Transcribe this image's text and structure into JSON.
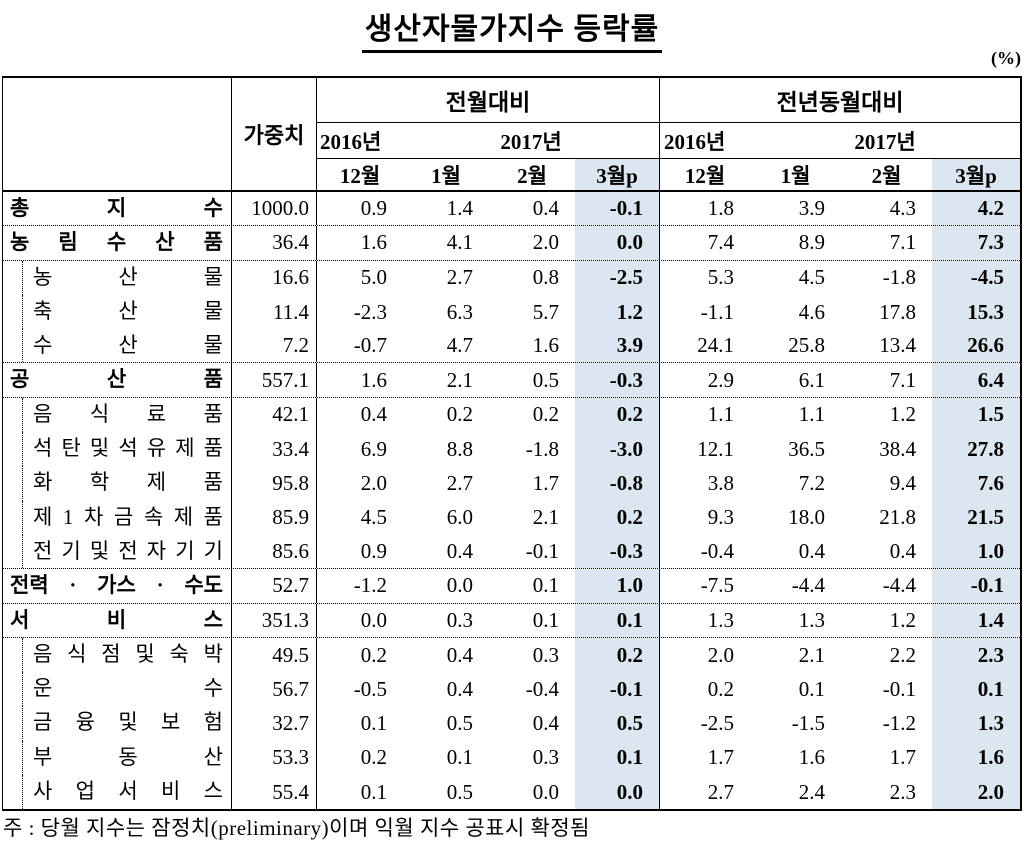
{
  "title": "생산자물가지수 등락률",
  "unit_label": "(%)",
  "colors": {
    "highlight": "#dce6f1"
  },
  "table": {
    "weight_header": "가중치",
    "group_headers": {
      "mom": "전월대비",
      "yoy": "전년동월대비"
    },
    "year_headers": {
      "y2016": "2016년",
      "y2017": "2017년"
    },
    "month_headers": [
      "12월",
      "1월",
      "2월",
      "3월p"
    ],
    "rows": [
      {
        "label": "총 지 수",
        "level": "major",
        "sep_after": true,
        "weight": "1000.0",
        "mom": [
          "0.9",
          "1.4",
          "0.4",
          "-0.1"
        ],
        "yoy": [
          "1.8",
          "3.9",
          "4.3",
          "4.2"
        ]
      },
      {
        "label": "농 림 수 산 품",
        "level": "major",
        "sep_after": true,
        "weight": "36.4",
        "mom": [
          "1.6",
          "4.1",
          "2.0",
          "0.0"
        ],
        "yoy": [
          "7.4",
          "8.9",
          "7.1",
          "7.3"
        ]
      },
      {
        "label": "농 산 물",
        "level": "sub",
        "sep_after": false,
        "weight": "16.6",
        "mom": [
          "5.0",
          "2.7",
          "0.8",
          "-2.5"
        ],
        "yoy": [
          "5.3",
          "4.5",
          "-1.8",
          "-4.5"
        ]
      },
      {
        "label": "축 산 물",
        "level": "sub",
        "sep_after": false,
        "weight": "11.4",
        "mom": [
          "-2.3",
          "6.3",
          "5.7",
          "1.2"
        ],
        "yoy": [
          "-1.1",
          "4.6",
          "17.8",
          "15.3"
        ]
      },
      {
        "label": "수 산 물",
        "level": "sub",
        "sep_after": true,
        "weight": "7.2",
        "mom": [
          "-0.7",
          "4.7",
          "1.6",
          "3.9"
        ],
        "yoy": [
          "24.1",
          "25.8",
          "13.4",
          "26.6"
        ]
      },
      {
        "label": "공 산 품",
        "level": "major",
        "sep_after": true,
        "weight": "557.1",
        "mom": [
          "1.6",
          "2.1",
          "0.5",
          "-0.3"
        ],
        "yoy": [
          "2.9",
          "6.1",
          "7.1",
          "6.4"
        ]
      },
      {
        "label": "음 식 료 품",
        "level": "sub",
        "sep_after": false,
        "weight": "42.1",
        "mom": [
          "0.4",
          "0.2",
          "0.2",
          "0.2"
        ],
        "yoy": [
          "1.1",
          "1.1",
          "1.2",
          "1.5"
        ]
      },
      {
        "label": "석 탄 및 석 유 제 품",
        "level": "sub",
        "sep_after": false,
        "weight": "33.4",
        "mom": [
          "6.9",
          "8.8",
          "-1.8",
          "-3.0"
        ],
        "yoy": [
          "12.1",
          "36.5",
          "38.4",
          "27.8"
        ]
      },
      {
        "label": "화 학 제 품",
        "level": "sub",
        "sep_after": false,
        "weight": "95.8",
        "mom": [
          "2.0",
          "2.7",
          "1.7",
          "-0.8"
        ],
        "yoy": [
          "3.8",
          "7.2",
          "9.4",
          "7.6"
        ]
      },
      {
        "label": "제 1 차 금 속 제 품",
        "level": "sub",
        "sep_after": false,
        "weight": "85.9",
        "mom": [
          "4.5",
          "6.0",
          "2.1",
          "0.2"
        ],
        "yoy": [
          "9.3",
          "18.0",
          "21.8",
          "21.5"
        ]
      },
      {
        "label": "전 기 및 전 자 기 기",
        "level": "sub",
        "sep_after": true,
        "weight": "85.6",
        "mom": [
          "0.9",
          "0.4",
          "-0.1",
          "-0.3"
        ],
        "yoy": [
          "-0.4",
          "0.4",
          "0.4",
          "1.0"
        ]
      },
      {
        "label": "전력 · 가스 · 수도",
        "level": "major",
        "sep_after": true,
        "weight": "52.7",
        "mom": [
          "-1.2",
          "0.0",
          "0.1",
          "1.0"
        ],
        "yoy": [
          "-7.5",
          "-4.4",
          "-4.4",
          "-0.1"
        ]
      },
      {
        "label": "서 비 스",
        "level": "major",
        "sep_after": true,
        "weight": "351.3",
        "mom": [
          "0.0",
          "0.3",
          "0.1",
          "0.1"
        ],
        "yoy": [
          "1.3",
          "1.3",
          "1.2",
          "1.4"
        ]
      },
      {
        "label": "음 식 점 및 숙 박",
        "level": "sub",
        "sep_after": false,
        "weight": "49.5",
        "mom": [
          "0.2",
          "0.4",
          "0.3",
          "0.2"
        ],
        "yoy": [
          "2.0",
          "2.1",
          "2.2",
          "2.3"
        ]
      },
      {
        "label": "운 수",
        "level": "sub",
        "sep_after": false,
        "weight": "56.7",
        "mom": [
          "-0.5",
          "0.4",
          "-0.4",
          "-0.1"
        ],
        "yoy": [
          "0.2",
          "0.1",
          "-0.1",
          "0.1"
        ]
      },
      {
        "label": "금 융 및 보 험",
        "level": "sub",
        "sep_after": false,
        "weight": "32.7",
        "mom": [
          "0.1",
          "0.5",
          "0.4",
          "0.5"
        ],
        "yoy": [
          "-2.5",
          "-1.5",
          "-1.2",
          "1.3"
        ]
      },
      {
        "label": "부 동 산",
        "level": "sub",
        "sep_after": false,
        "weight": "53.3",
        "mom": [
          "0.2",
          "0.1",
          "0.3",
          "0.1"
        ],
        "yoy": [
          "1.7",
          "1.6",
          "1.7",
          "1.6"
        ]
      },
      {
        "label": "사 업 서 비 스",
        "level": "sub",
        "sep_after": false,
        "weight": "55.4",
        "mom": [
          "0.1",
          "0.5",
          "0.0",
          "0.0"
        ],
        "yoy": [
          "2.7",
          "2.4",
          "2.3",
          "2.0"
        ]
      }
    ]
  },
  "footnote": "주 : 당월 지수는 잠정치(preliminary)이며 익월 지수 공표시 확정됨"
}
